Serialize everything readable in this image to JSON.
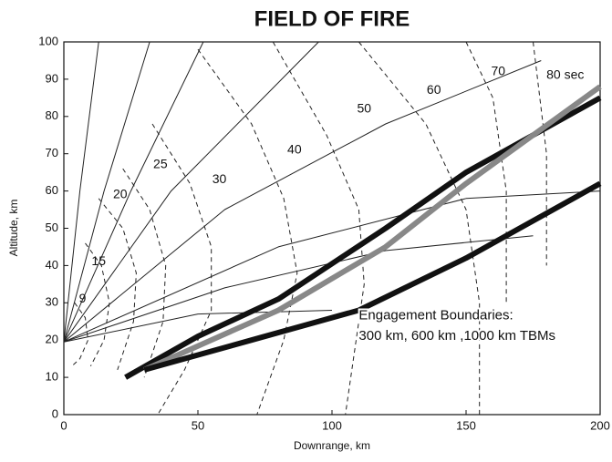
{
  "chart_data": {
    "type": "line",
    "title": "FIELD OF FIRE",
    "x_label": "Downrange, km",
    "y_label": "Altitude, km",
    "xlim": [
      0,
      200
    ],
    "xticks": [
      0,
      50,
      100,
      150,
      200
    ],
    "ylim": [
      0,
      100
    ],
    "yticks": [
      0,
      10,
      20,
      30,
      40,
      50,
      60,
      70,
      80,
      90,
      100
    ],
    "annotations": [
      "9",
      "15",
      "20",
      "25",
      "30",
      "40",
      "50",
      "60",
      "70",
      "80 sec",
      "Engagement Boundaries:",
      "300 km, 600 km ,1000 km TBMs"
    ],
    "series": [
      {
        "color": "#222",
        "width": 1,
        "dash": false,
        "x": [
          0,
          6,
          13
        ],
        "values": [
          19.5,
          60,
          100
        ]
      },
      {
        "color": "#222",
        "width": 1,
        "dash": false,
        "x": [
          0,
          15,
          32
        ],
        "values": [
          19.5,
          60,
          100
        ]
      },
      {
        "color": "#222",
        "width": 1,
        "dash": false,
        "x": [
          0,
          25,
          52
        ],
        "values": [
          19.5,
          60,
          100
        ]
      },
      {
        "color": "#222",
        "width": 1,
        "dash": false,
        "x": [
          0,
          40,
          95
        ],
        "values": [
          19.5,
          60,
          100
        ]
      },
      {
        "color": "#222",
        "width": 1,
        "dash": false,
        "x": [
          0,
          60,
          120,
          178
        ],
        "values": [
          19.5,
          55,
          78,
          95
        ]
      },
      {
        "color": "#222",
        "width": 1,
        "dash": false,
        "x": [
          0,
          80,
          150,
          200
        ],
        "values": [
          19.5,
          45,
          58,
          60
        ]
      },
      {
        "color": "#222",
        "width": 1,
        "dash": false,
        "x": [
          0,
          60,
          120,
          175
        ],
        "values": [
          19.5,
          34,
          44,
          48
        ]
      },
      {
        "color": "#222",
        "width": 1,
        "dash": false,
        "x": [
          0,
          50,
          100
        ],
        "values": [
          19.5,
          27,
          28
        ]
      },
      {
        "color": "#222",
        "width": 1,
        "dash": true,
        "x": [
          4,
          8,
          9,
          6,
          3
        ],
        "values": [
          30,
          26,
          20,
          15,
          13
        ]
      },
      {
        "color": "#222",
        "width": 1,
        "dash": true,
        "x": [
          8,
          14,
          17,
          15,
          10
        ],
        "values": [
          46,
          40,
          30,
          20,
          13
        ]
      },
      {
        "color": "#222",
        "width": 1,
        "dash": true,
        "x": [
          13,
          22,
          27,
          26,
          20
        ],
        "values": [
          58,
          50,
          38,
          25,
          12
        ]
      },
      {
        "color": "#222",
        "width": 1,
        "dash": true,
        "x": [
          22,
          32,
          38,
          37,
          30
        ],
        "values": [
          66,
          55,
          40,
          25,
          10
        ]
      },
      {
        "color": "#222",
        "width": 1,
        "dash": true,
        "x": [
          33,
          47,
          55,
          55,
          45,
          35
        ],
        "values": [
          78,
          62,
          45,
          28,
          12,
          0
        ]
      },
      {
        "color": "#222",
        "width": 1,
        "dash": true,
        "x": [
          50,
          70,
          82,
          87,
          82,
          72
        ],
        "values": [
          98,
          78,
          58,
          38,
          20,
          0
        ]
      },
      {
        "color": "#222",
        "width": 1,
        "dash": true,
        "x": [
          78,
          98,
          110,
          112,
          105
        ],
        "values": [
          100,
          75,
          55,
          35,
          0
        ]
      },
      {
        "color": "#222",
        "width": 1,
        "dash": true,
        "x": [
          110,
          135,
          150,
          155,
          155
        ],
        "values": [
          100,
          78,
          55,
          30,
          0
        ]
      },
      {
        "color": "#222",
        "width": 1,
        "dash": true,
        "x": [
          150,
          160,
          165,
          165
        ],
        "values": [
          100,
          85,
          60,
          30
        ]
      },
      {
        "color": "#222",
        "width": 1,
        "dash": true,
        "x": [
          175,
          180,
          180
        ],
        "values": [
          100,
          70,
          40
        ]
      },
      {
        "color": "#111",
        "width": 6,
        "dash": false,
        "x": [
          23,
          50,
          80,
          120,
          150,
          200
        ],
        "values": [
          10,
          21,
          31,
          50,
          65,
          85
        ]
      },
      {
        "color": "#888",
        "width": 6,
        "dash": false,
        "x": [
          30,
          80,
          120,
          150,
          200
        ],
        "values": [
          12,
          28,
          45,
          62,
          88
        ]
      },
      {
        "color": "#111",
        "width": 6,
        "dash": false,
        "x": [
          30,
          70,
          110,
          150,
          200
        ],
        "values": [
          12,
          20,
          28,
          42,
          62
        ]
      }
    ]
  }
}
